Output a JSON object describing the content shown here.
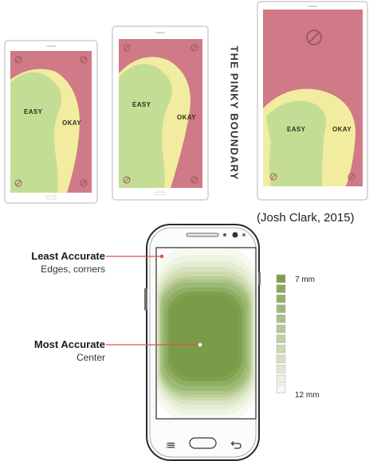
{
  "top_figure": {
    "title": "THE PINKY BOUNDARY",
    "citation": "(Josh Clark, 2015)",
    "phones": [
      {
        "zones": {
          "easy": "EASY",
          "okay": "OKAY"
        }
      },
      {
        "zones": {
          "easy": "EASY",
          "okay": "OKAY"
        }
      },
      {
        "zones": {
          "easy": "EASY",
          "okay": "OKAY"
        }
      }
    ],
    "colors": {
      "hard": "#cf7a86",
      "okay": "#f2eca0",
      "easy": "#c4dd94"
    },
    "icons": [
      "no-entry-icon"
    ]
  },
  "bottom_figure": {
    "callouts": {
      "least": {
        "title": "Least Accurate",
        "subtitle": "Edges, corners"
      },
      "most": {
        "title": "Most Accurate",
        "subtitle": "Center"
      }
    },
    "legend": {
      "top_label": "7 mm",
      "bottom_label": "12 mm",
      "steps": 12
    },
    "colors": {
      "darkest": "#7da04a",
      "lightest": "#f6f8f0",
      "callout_line": "#d9534f"
    }
  }
}
